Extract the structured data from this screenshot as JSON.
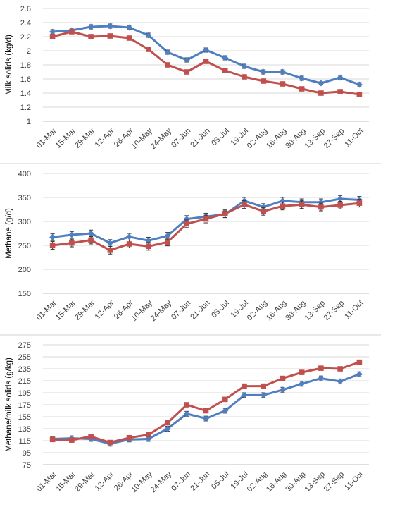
{
  "colors": {
    "series_a": "#4f7fc0",
    "series_b": "#c0504d",
    "grid": "#d9d9d9",
    "text": "#404040"
  },
  "chart_data": [
    {
      "type": "line",
      "title": "",
      "xlabel": "",
      "ylabel": "Milk solids (kg/d)",
      "x": [
        "01-Mar",
        "15-Mar",
        "29-Mar",
        "12-Apr",
        "26-Apr",
        "10-May",
        "24-May",
        "07-Jun",
        "21-Jun",
        "05-Jul",
        "19-Jul",
        "02-Aug",
        "16-Aug",
        "30-Aug",
        "13-Sep",
        "27-Sep",
        "11-Oct"
      ],
      "ylim": [
        1,
        2.6
      ],
      "yticks": [
        1,
        1.2,
        1.4,
        1.6,
        1.8,
        2,
        2.2,
        2.4,
        2.6
      ],
      "yticklabels": [
        "1",
        "1.2",
        "1.4",
        "1.6",
        "1.8",
        "2",
        "2.2",
        "2.4",
        "2.6"
      ],
      "grid": true,
      "series": [
        {
          "color": "#4f7fc0",
          "marker": "diamond",
          "values": [
            2.27,
            2.29,
            2.34,
            2.35,
            2.33,
            2.22,
            1.98,
            1.87,
            2.01,
            1.9,
            1.78,
            1.7,
            1.7,
            1.61,
            1.54,
            1.62,
            1.52
          ],
          "error": [
            0.03,
            0.03,
            0.03,
            0.03,
            0.03,
            0.03,
            0.03,
            0.03,
            0.03,
            0.03,
            0.03,
            0.03,
            0.03,
            0.03,
            0.02,
            0.03,
            0.03
          ]
        },
        {
          "color": "#c0504d",
          "marker": "square",
          "values": [
            2.2,
            2.27,
            2.2,
            2.21,
            2.18,
            2.02,
            1.8,
            1.7,
            1.85,
            1.72,
            1.63,
            1.57,
            1.53,
            1.46,
            1.4,
            1.42,
            1.38
          ],
          "error": [
            0.02,
            0.02,
            0.02,
            0.02,
            0.02,
            0.02,
            0.02,
            0.02,
            0.02,
            0.02,
            0.02,
            0.02,
            0.02,
            0.02,
            0.02,
            0.02,
            0.02
          ]
        }
      ]
    },
    {
      "type": "line",
      "title": "",
      "xlabel": "",
      "ylabel": "Methane (g/d)",
      "x": [
        "01-Mar",
        "15-Mar",
        "29-Mar",
        "12-Apr",
        "26-Apr",
        "10-May",
        "24-May",
        "07-Jun",
        "21-Jun",
        "05-Jul",
        "19-Jul",
        "02-Aug",
        "16-Aug",
        "30-Aug",
        "13-Sep",
        "27-Sep",
        "11-Oct"
      ],
      "ylim": [
        150,
        400
      ],
      "yticks": [
        150,
        200,
        250,
        300,
        350,
        400
      ],
      "yticklabels": [
        "150",
        "200",
        "250",
        "300",
        "350",
        "400"
      ],
      "grid": true,
      "series": [
        {
          "color": "#4f7fc0",
          "marker": "diamond",
          "values": [
            267,
            272,
            275,
            255,
            268,
            260,
            270,
            305,
            310,
            315,
            343,
            330,
            343,
            340,
            340,
            347,
            345
          ],
          "error": [
            7,
            7,
            7,
            7,
            7,
            7,
            7,
            7,
            7,
            7,
            7,
            7,
            7,
            7,
            7,
            7,
            7
          ]
        },
        {
          "color": "#c0504d",
          "marker": "square",
          "values": [
            250,
            255,
            261,
            240,
            253,
            248,
            257,
            295,
            305,
            316,
            335,
            321,
            332,
            335,
            330,
            334,
            338
          ],
          "error": [
            8,
            8,
            8,
            8,
            8,
            8,
            8,
            8,
            8,
            8,
            8,
            8,
            8,
            8,
            8,
            8,
            8
          ]
        }
      ]
    },
    {
      "type": "line",
      "title": "",
      "xlabel": "",
      "ylabel": "Methane/milk solids (g/kg)",
      "x": [
        "01-Mar",
        "15-Mar",
        "29-Mar",
        "12-Apr",
        "26-Apr",
        "10-May",
        "24-May",
        "07-Jun",
        "21-Jun",
        "05-Jul",
        "19-Jul",
        "02-Aug",
        "16-Aug",
        "30-Aug",
        "13-Sep",
        "27-Sep",
        "11-Oct"
      ],
      "ylim": [
        75,
        275
      ],
      "yticks": [
        75,
        95,
        115,
        135,
        155,
        175,
        195,
        215,
        235,
        255,
        275
      ],
      "yticklabels": [
        "75",
        "95",
        "115",
        "135",
        "155",
        "175",
        "195",
        "215",
        "235",
        "255",
        "275"
      ],
      "grid": true,
      "series": [
        {
          "color": "#4f7fc0",
          "marker": "diamond",
          "values": [
            118,
            119,
            118,
            110,
            117,
            118,
            135,
            160,
            152,
            165,
            191,
            191,
            200,
            210,
            219,
            214,
            226
          ],
          "error": [
            4,
            4,
            4,
            4,
            4,
            4,
            4,
            4,
            4,
            4,
            4,
            4,
            4,
            4,
            4,
            4,
            4
          ]
        },
        {
          "color": "#c0504d",
          "marker": "square",
          "values": [
            117,
            116,
            122,
            112,
            120,
            125,
            145,
            175,
            165,
            184,
            206,
            206,
            219,
            229,
            236,
            235,
            246
          ],
          "error": [
            3,
            3,
            3,
            3,
            3,
            3,
            3,
            3,
            3,
            3,
            3,
            3,
            3,
            3,
            3,
            3,
            3
          ]
        }
      ]
    }
  ]
}
